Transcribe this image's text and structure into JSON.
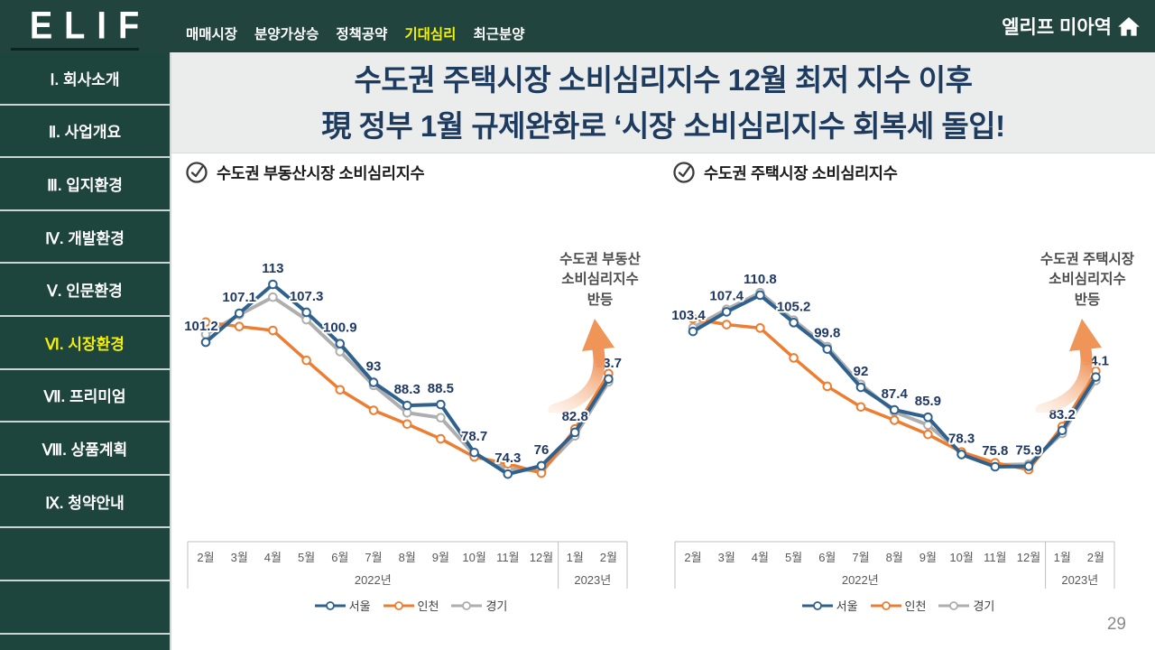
{
  "page": {
    "number": "29"
  },
  "topbar": {
    "logo": "ELIF",
    "nav_items": [
      {
        "label": "매매시장",
        "active": false
      },
      {
        "label": "분양가상승",
        "active": false
      },
      {
        "label": "정책공약",
        "active": false
      },
      {
        "label": "기대심리",
        "active": true
      },
      {
        "label": "최근분양",
        "active": false
      }
    ],
    "project_title": "엘리프 미아역"
  },
  "sidebar": {
    "items": [
      {
        "label": "Ⅰ. 회사소개",
        "active": false
      },
      {
        "label": "Ⅱ. 사업개요",
        "active": false
      },
      {
        "label": "Ⅲ. 입지환경",
        "active": false
      },
      {
        "label": "Ⅳ. 개발환경",
        "active": false
      },
      {
        "label": "Ⅴ. 인문환경",
        "active": false
      },
      {
        "label": "Ⅵ. 시장환경",
        "active": true
      },
      {
        "label": "Ⅶ. 프리미엄",
        "active": false
      },
      {
        "label": "Ⅷ. 상품계획",
        "active": false
      },
      {
        "label": "Ⅸ. 청약안내",
        "active": false
      },
      {
        "label": "",
        "active": false
      },
      {
        "label": "",
        "active": false
      }
    ]
  },
  "headline": {
    "line1": "수도권 주택시장 소비심리지수 12월 최저 지수 이후",
    "line2": "現 정부 1월 규제완화로 ‘시장 소비심리지수 회복세 돌입!"
  },
  "colors": {
    "brand_green": "#1e443e",
    "accent_yellow": "#f2f20c",
    "headline_navy": "#1d3a5f",
    "seoul_blue": "#2f618e",
    "incheon_orange": "#ed7d31",
    "gyeonggi_gray": "#aeaeae",
    "data_label_navy": "#1f3864",
    "arrow_orange": "#ef9558"
  },
  "chart_data": [
    {
      "type": "line",
      "title": "수도권 부동산시장 소비심리지수",
      "categories": [
        "2월",
        "3월",
        "4월",
        "5월",
        "6월",
        "7월",
        "8월",
        "9월",
        "10월",
        "11월",
        "12월",
        "1월",
        "2월"
      ],
      "year_groups": [
        {
          "label": "2022년",
          "from": 0,
          "to": 10
        },
        {
          "label": "2023년",
          "from": 11,
          "to": 12
        }
      ],
      "series": [
        {
          "name": "서울",
          "color": "#2f618e",
          "labeled": true,
          "values": [
            101.2,
            107.1,
            113,
            107.3,
            100.9,
            93,
            88.3,
            88.5,
            78.7,
            74.3,
            76,
            82.8,
            93.7
          ]
        },
        {
          "name": "인천",
          "color": "#ed7d31",
          "labeled": false,
          "values": [
            105.3,
            104.4,
            103.6,
            97.5,
            91.5,
            87.3,
            84.5,
            81.5,
            77.8,
            76.4,
            74.5,
            83.5,
            94.8
          ]
        },
        {
          "name": "경기",
          "color": "#aeaeae",
          "labeled": false,
          "values": [
            102.8,
            106.8,
            110.4,
            105.8,
            99.3,
            92.4,
            86.8,
            85.8,
            78.3,
            75.4,
            74.9,
            82.1,
            93.1
          ]
        }
      ],
      "annotation": "수도권 부동산\n소비심리지수\n반등",
      "ylim": [
        70,
        118
      ],
      "grid": false,
      "legend_position": "bottom"
    },
    {
      "type": "line",
      "title": "수도권 주택시장 소비심리지수",
      "categories": [
        "2월",
        "3월",
        "4월",
        "5월",
        "6월",
        "7월",
        "8월",
        "9월",
        "10월",
        "11월",
        "12월",
        "1월",
        "2월"
      ],
      "year_groups": [
        {
          "label": "2022년",
          "from": 0,
          "to": 10
        },
        {
          "label": "2023년",
          "from": 11,
          "to": 12
        }
      ],
      "series": [
        {
          "name": "서울",
          "color": "#2f618e",
          "labeled": true,
          "values": [
            103.4,
            107.4,
            110.8,
            105.2,
            99.8,
            92,
            87.4,
            85.9,
            78.3,
            75.8,
            75.9,
            83.2,
            94.1
          ]
        },
        {
          "name": "인천",
          "color": "#ed7d31",
          "labeled": false,
          "values": [
            106,
            104.8,
            104.1,
            98,
            92.2,
            88,
            85.3,
            82.4,
            78.8,
            76.6,
            75.2,
            84,
            95.3
          ]
        },
        {
          "name": "경기",
          "color": "#aeaeae",
          "labeled": false,
          "values": [
            104.2,
            107.9,
            111.3,
            105.7,
            100.3,
            92.6,
            87,
            84.3,
            78.7,
            76.2,
            76.3,
            82.6,
            93.4
          ]
        }
      ],
      "annotation": "수도권 주택시장\n소비심리지수\n반등",
      "ylim": [
        70,
        118
      ],
      "grid": false,
      "legend_position": "bottom"
    }
  ]
}
